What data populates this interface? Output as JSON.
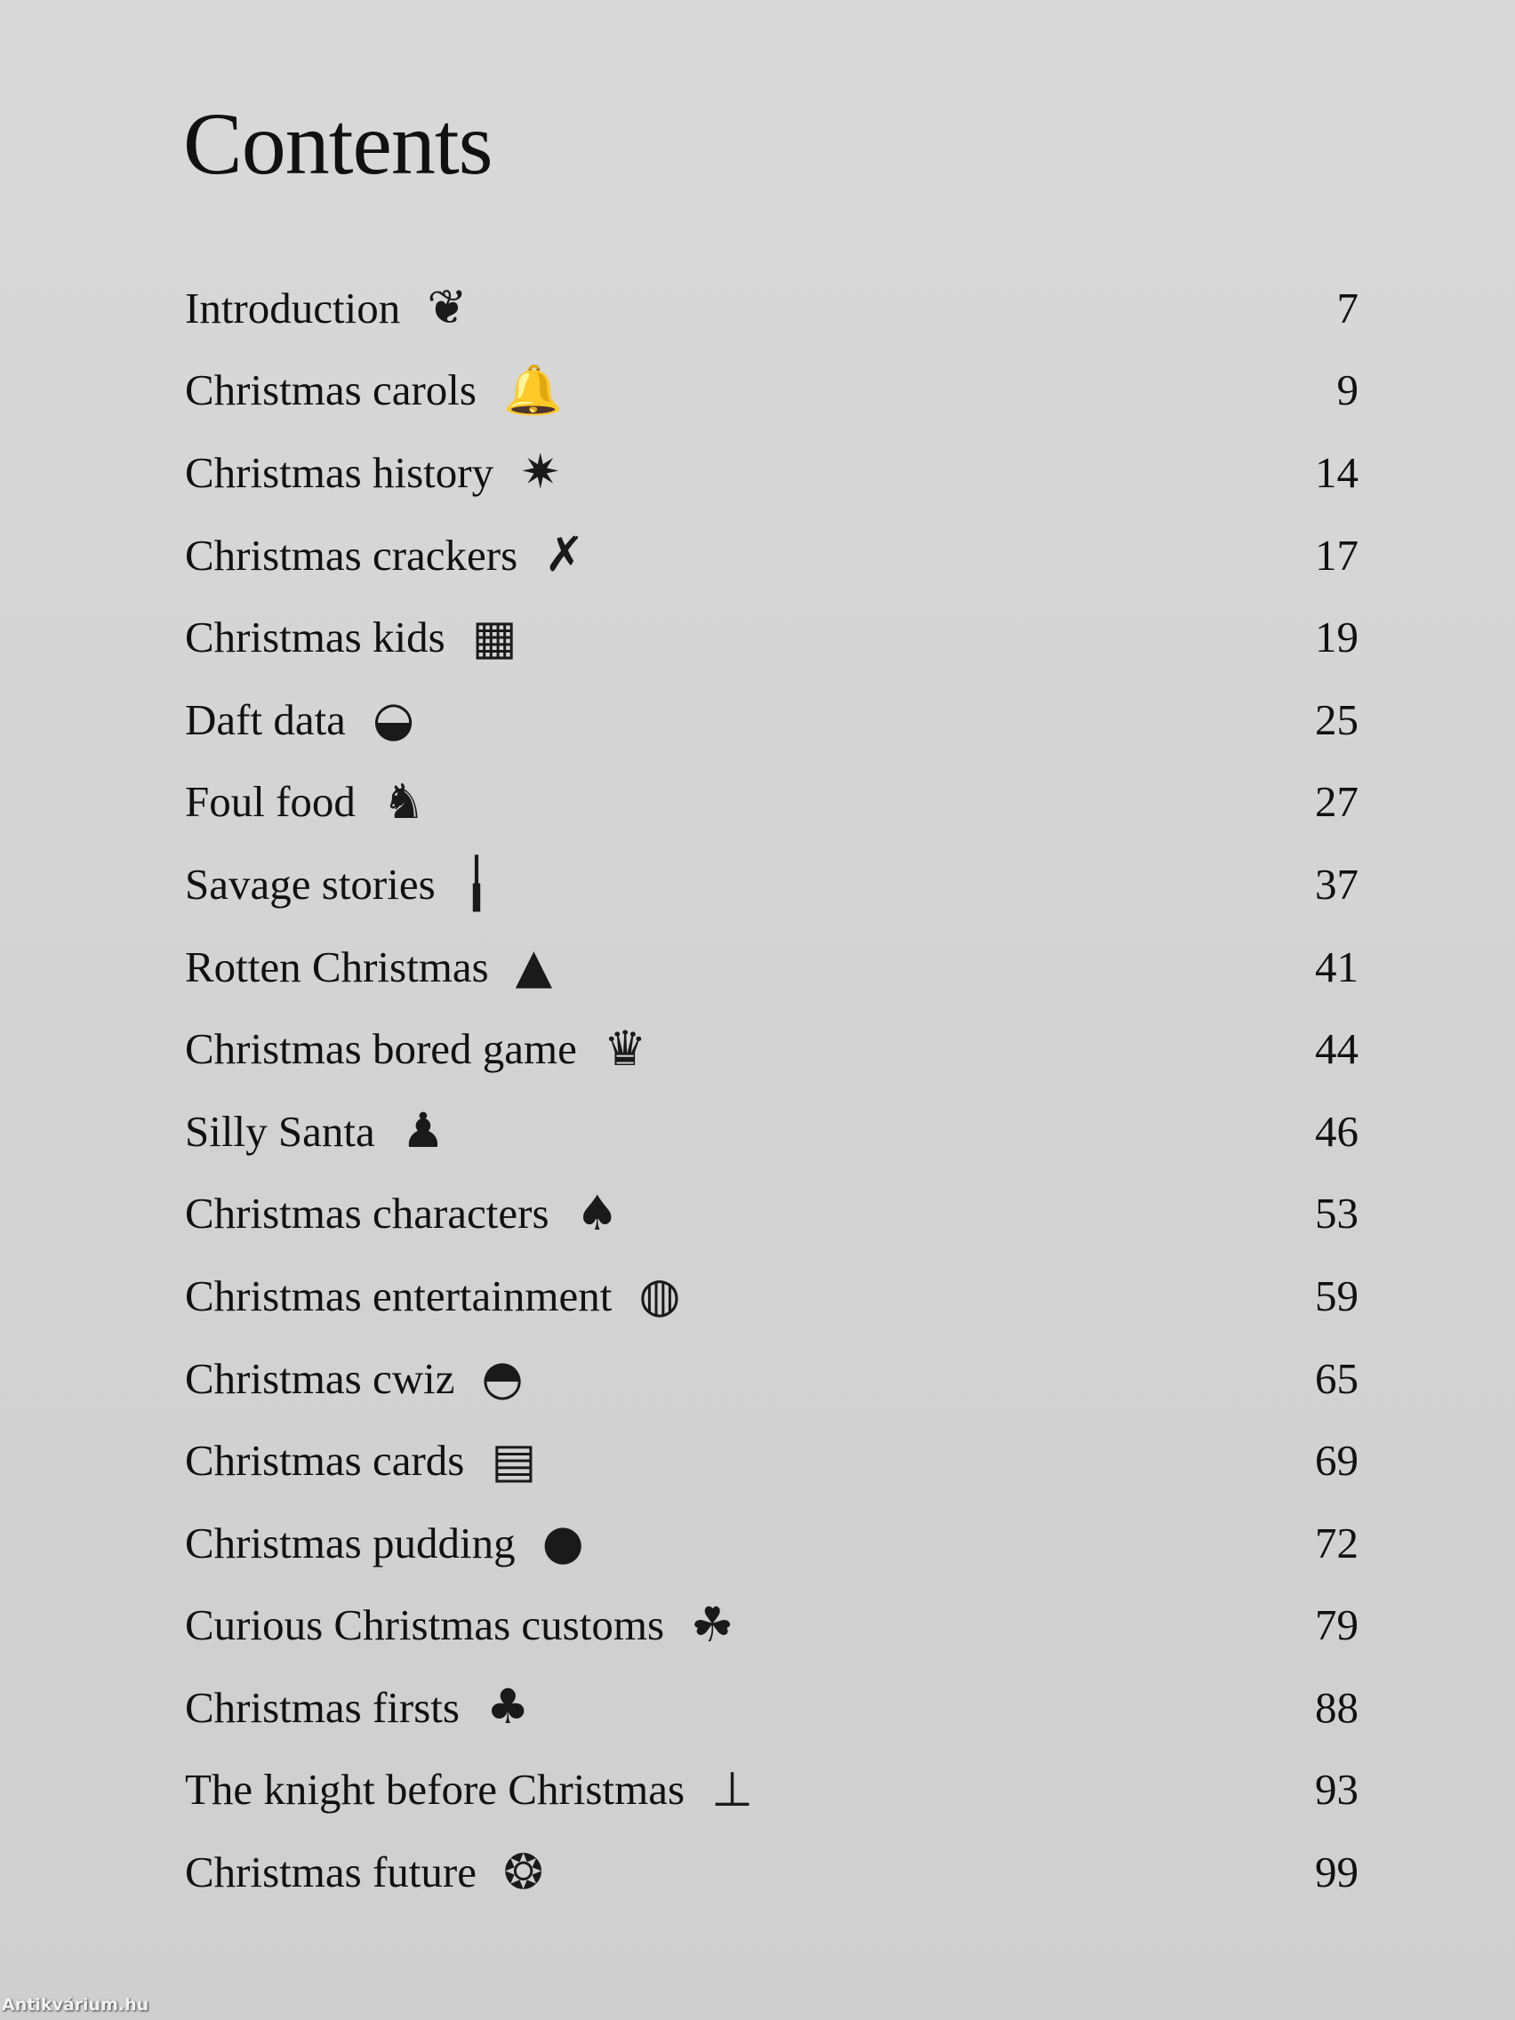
{
  "title": "Contents",
  "entries": [
    {
      "label": "Introduction",
      "page": "7",
      "icon": "holly-icon",
      "glyph": "❦"
    },
    {
      "label": "Christmas carols",
      "page": "9",
      "icon": "bells-icon",
      "glyph": "🔔"
    },
    {
      "label": "Christmas history",
      "page": "14",
      "icon": "star-icon",
      "glyph": "✷"
    },
    {
      "label": "Christmas crackers",
      "page": "17",
      "icon": "cracker-icon",
      "glyph": "✗"
    },
    {
      "label": "Christmas kids",
      "page": "19",
      "icon": "gift-icon",
      "glyph": "▦"
    },
    {
      "label": "Daft data",
      "page": "25",
      "icon": "pie-icon",
      "glyph": "◒"
    },
    {
      "label": "Foul food",
      "page": "27",
      "icon": "turkey-icon",
      "glyph": "♞"
    },
    {
      "label": "Savage stories",
      "page": "37",
      "icon": "candle-icon",
      "glyph": "╽"
    },
    {
      "label": "Rotten Christmas",
      "page": "41",
      "icon": "fir-tree-icon",
      "glyph": "▲"
    },
    {
      "label": "Christmas bored game",
      "page": "44",
      "icon": "crown-icon",
      "glyph": "♛"
    },
    {
      "label": "Silly Santa",
      "page": "46",
      "icon": "santa-icon",
      "glyph": "♟"
    },
    {
      "label": "Christmas characters",
      "page": "53",
      "icon": "potted-tree-icon",
      "glyph": "♠"
    },
    {
      "label": "Christmas entertainment",
      "page": "59",
      "icon": "baubles-icon",
      "glyph": "◍"
    },
    {
      "label": "Christmas cwiz",
      "page": "65",
      "icon": "roast-turkey-icon",
      "glyph": "◓"
    },
    {
      "label": "Christmas cards",
      "page": "69",
      "icon": "cards-icon",
      "glyph": "▤"
    },
    {
      "label": "Christmas pudding",
      "page": "72",
      "icon": "pudding-icon",
      "glyph": "●"
    },
    {
      "label": "Curious Christmas customs",
      "page": "79",
      "icon": "mistletoe-icon",
      "glyph": "☘"
    },
    {
      "label": "Christmas firsts",
      "page": "88",
      "icon": "candle-tree-icon",
      "glyph": "♣"
    },
    {
      "label": "The knight before Christmas",
      "page": "93",
      "icon": "candle-holder-icon",
      "glyph": "⊥"
    },
    {
      "label": "Christmas future",
      "page": "99",
      "icon": "wreath-icon",
      "glyph": "❂"
    }
  ],
  "watermark": "Antikvárium.hu"
}
